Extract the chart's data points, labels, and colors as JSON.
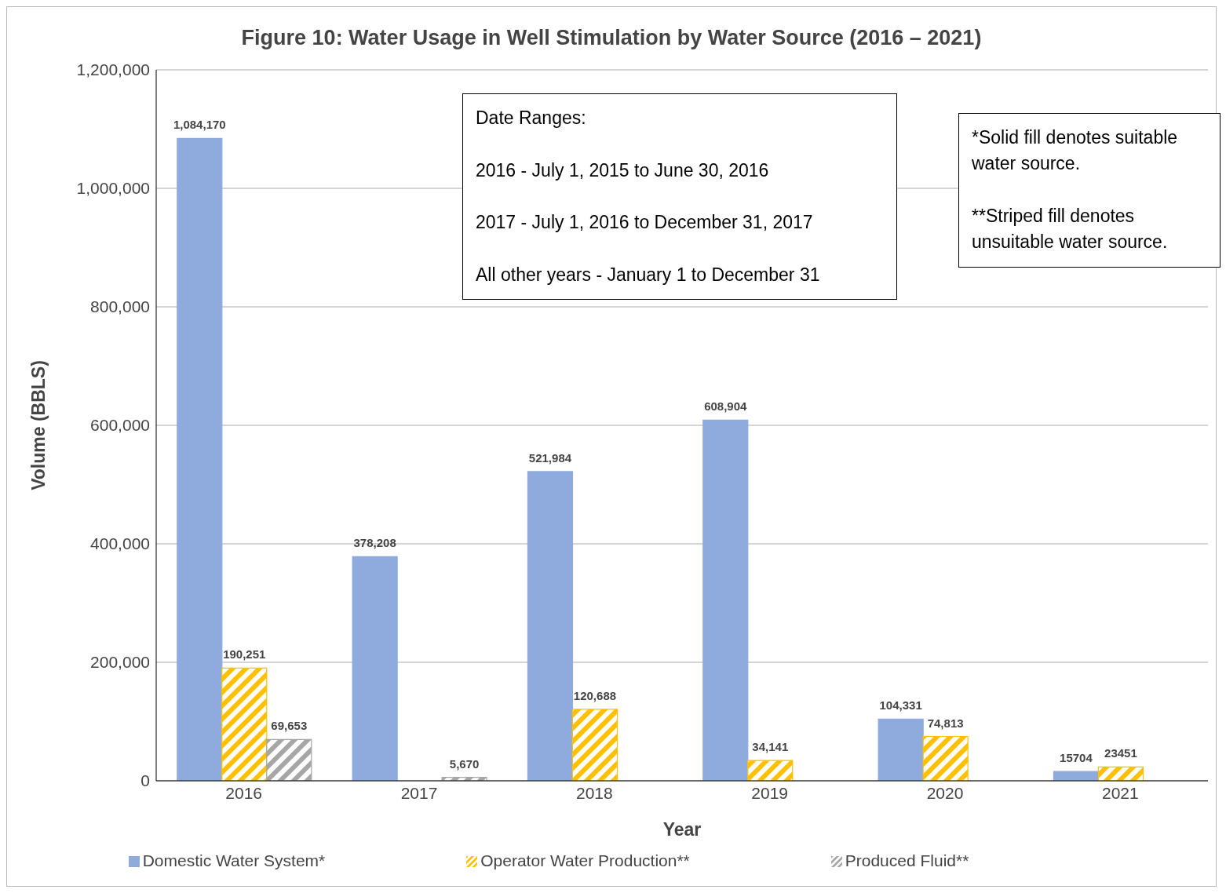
{
  "chart_data": {
    "type": "bar",
    "title": "Figure 10: Water Usage in Well Stimulation by Water Source (2016 – 2021)",
    "xlabel": "Year",
    "ylabel": "Volume (BBLS)",
    "categories": [
      "2016",
      "2017",
      "2018",
      "2019",
      "2020",
      "2021"
    ],
    "series": [
      {
        "name": "Domestic Water System*",
        "color": "#8faadc",
        "values": [
          1084170,
          378208,
          521984,
          608904,
          104331,
          15704
        ],
        "value_labels": [
          "1,084,170",
          "378,208",
          "521,984",
          "608,904",
          "104,331",
          "15704"
        ]
      },
      {
        "name": "Operator Water Production**",
        "color": "#ffc000",
        "values": [
          190251,
          null,
          120688,
          34141,
          74813,
          23451
        ],
        "value_labels": [
          "190,251",
          null,
          "120,688",
          "34,141",
          "74,813",
          "23451"
        ]
      },
      {
        "name": "Produced Fluid**",
        "color": "#a6a6a6",
        "values": [
          69653,
          5670,
          null,
          null,
          null,
          null
        ],
        "value_labels": [
          "69,653",
          "5,670",
          null,
          null,
          null,
          null
        ]
      }
    ],
    "ylim": [
      0,
      1200000
    ],
    "yticks": [
      {
        "value": 0,
        "label": "0"
      },
      {
        "value": 200000,
        "label": "200,000"
      },
      {
        "value": 400000,
        "label": "400,000"
      },
      {
        "value": 600000,
        "label": "600,000"
      },
      {
        "value": 800000,
        "label": "800,000"
      },
      {
        "value": 1000000,
        "label": "1,000,000"
      },
      {
        "value": 1200000,
        "label": "1,200,000"
      }
    ],
    "grid": "y",
    "legend": "bottom",
    "annotations": [
      "Date Ranges:\n\n2016 - July 1, 2015 to June 30, 2016\n\n2017 - July 1, 2016 to December 31, 2017\n\nAll other years - January 1 to December 31",
      "*Solid fill denotes suitable water source.\n\n**Striped fill denotes unsuitable water source."
    ]
  }
}
